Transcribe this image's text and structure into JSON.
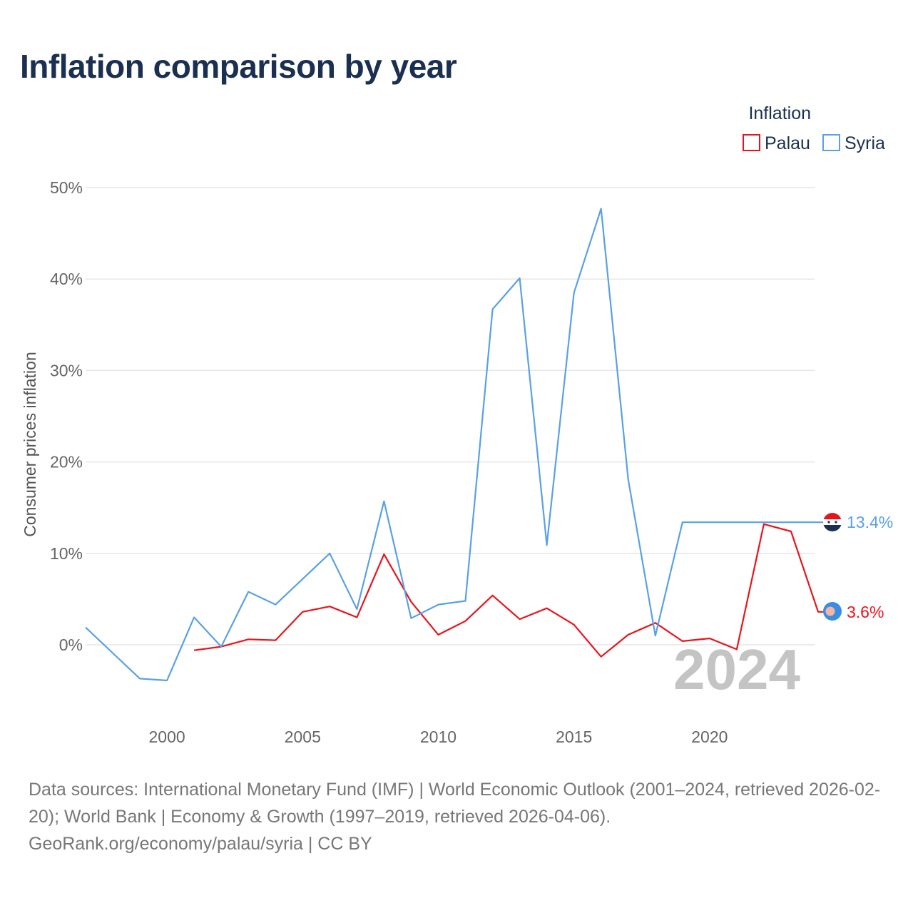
{
  "title": "Inflation comparison by year",
  "legend": {
    "title": "Inflation",
    "items": [
      {
        "label": "Palau",
        "color": "#e8141c"
      },
      {
        "label": "Syria",
        "color": "#5aa1e3"
      }
    ]
  },
  "chart_data": {
    "type": "line",
    "title": "Inflation comparison by year",
    "xlabel": "",
    "ylabel": "Consumer prices inflation",
    "xlim": [
      1997,
      2024
    ],
    "ylim": [
      -8,
      50
    ],
    "x_ticks": [
      2000,
      2005,
      2010,
      2015,
      2020
    ],
    "x_tick_labels": [
      "2000",
      "2005",
      "2010",
      "2015",
      "2020"
    ],
    "y_ticks": [
      0,
      10,
      20,
      30,
      40,
      50
    ],
    "y_tick_labels": [
      "0%",
      "10%",
      "20%",
      "30%",
      "40%",
      "50%"
    ],
    "grid": true,
    "legend_position": "top-right",
    "current_year": "2024",
    "series": [
      {
        "name": "Palau",
        "color": "#e8141c",
        "end_label": "3.6%",
        "points": [
          [
            2001,
            -0.6
          ],
          [
            2002,
            -0.2
          ],
          [
            2003,
            0.6
          ],
          [
            2004,
            0.5
          ],
          [
            2005,
            3.6
          ],
          [
            2006,
            4.2
          ],
          [
            2007,
            3.0
          ],
          [
            2008,
            9.9
          ],
          [
            2009,
            4.7
          ],
          [
            2010,
            1.1
          ],
          [
            2011,
            2.6
          ],
          [
            2012,
            5.4
          ],
          [
            2013,
            2.8
          ],
          [
            2014,
            4.0
          ],
          [
            2015,
            2.2
          ],
          [
            2016,
            -1.3
          ],
          [
            2017,
            1.1
          ],
          [
            2018,
            2.4
          ],
          [
            2019,
            0.4
          ],
          [
            2020,
            0.7
          ],
          [
            2021,
            -0.5
          ],
          [
            2022,
            13.2
          ],
          [
            2023,
            12.4
          ],
          [
            2024,
            3.6
          ]
        ]
      },
      {
        "name": "Syria",
        "color": "#5aa1e3",
        "end_label": "13.4%",
        "points": [
          [
            1997,
            1.9
          ],
          [
            1998,
            -0.9
          ],
          [
            1999,
            -3.7
          ],
          [
            2000,
            -3.9
          ],
          [
            2001,
            3.0
          ],
          [
            2002,
            -0.2
          ],
          [
            2003,
            5.8
          ],
          [
            2004,
            4.4
          ],
          [
            2005,
            7.2
          ],
          [
            2006,
            10.0
          ],
          [
            2007,
            3.9
          ],
          [
            2008,
            15.7
          ],
          [
            2009,
            2.9
          ],
          [
            2010,
            4.4
          ],
          [
            2011,
            4.8
          ],
          [
            2012,
            36.7
          ],
          [
            2013,
            40.1
          ],
          [
            2014,
            10.9
          ],
          [
            2015,
            38.5
          ],
          [
            2016,
            47.7
          ],
          [
            2017,
            18.1
          ],
          [
            2018,
            1.0
          ],
          [
            2019,
            13.4
          ],
          [
            2020,
            13.4
          ],
          [
            2021,
            13.4
          ],
          [
            2022,
            13.4
          ],
          [
            2023,
            13.4
          ],
          [
            2024,
            13.4
          ]
        ]
      }
    ]
  },
  "source": {
    "line1": "Data sources: International Monetary Fund (IMF) | World Economic Outlook (2001–2024, retrieved 2026-02-20); World Bank | Economy & Growth (1997–2019, retrieved 2026-04-06).",
    "line2": "GeoRank.org/economy/palau/syria | CC BY"
  }
}
